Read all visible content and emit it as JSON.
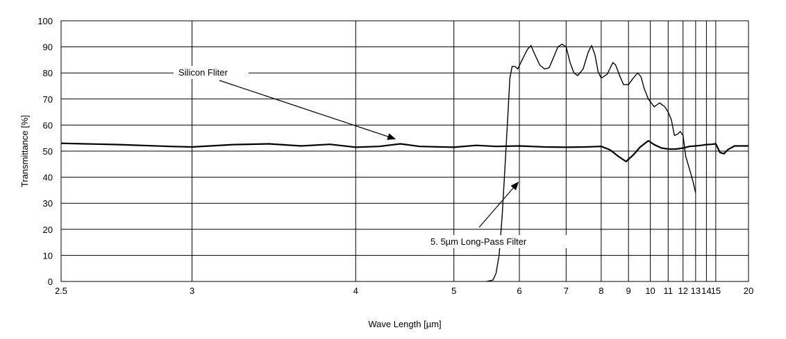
{
  "chart_data": {
    "type": "line",
    "xlabel": "Wave Length [µm]",
    "ylabel": "Transmittance [%]",
    "x_scale": "reciprocal",
    "xlim": [
      2.5,
      20
    ],
    "ylim": [
      0,
      100
    ],
    "x_ticks": [
      2.5,
      3,
      4,
      5,
      6,
      7,
      8,
      9,
      10,
      11,
      12,
      13,
      14,
      15,
      20
    ],
    "x_tick_labels": [
      "2.5",
      "3",
      "4",
      "5",
      "6",
      "7",
      "8",
      "9",
      "10",
      "11",
      "12",
      "13",
      "14",
      "15",
      "20"
    ],
    "y_ticks": [
      0,
      10,
      20,
      30,
      40,
      50,
      60,
      70,
      80,
      90,
      100
    ],
    "y_tick_labels": [
      "0",
      "10",
      "20",
      "30",
      "40",
      "50",
      "60",
      "70",
      "80",
      "90",
      "100"
    ],
    "grid": true,
    "legend": "none",
    "series": [
      {
        "name": "Silicon Fliter",
        "color": "#000000",
        "points": [
          [
            2.5,
            53
          ],
          [
            2.7,
            52.5
          ],
          [
            2.9,
            51.8
          ],
          [
            3.0,
            51.6
          ],
          [
            3.2,
            52.5
          ],
          [
            3.4,
            52.8
          ],
          [
            3.6,
            52
          ],
          [
            3.8,
            52.6
          ],
          [
            4.0,
            51.5
          ],
          [
            4.2,
            51.8
          ],
          [
            4.4,
            52.8
          ],
          [
            4.6,
            51.8
          ],
          [
            5.0,
            51.5
          ],
          [
            5.3,
            52.2
          ],
          [
            5.6,
            51.8
          ],
          [
            6.0,
            52
          ],
          [
            6.5,
            51.6
          ],
          [
            7.0,
            51.5
          ],
          [
            7.5,
            51.6
          ],
          [
            8.0,
            51.8
          ],
          [
            8.3,
            50.5
          ],
          [
            8.6,
            48
          ],
          [
            8.9,
            46
          ],
          [
            9.2,
            48.5
          ],
          [
            9.5,
            51.5
          ],
          [
            9.9,
            54
          ],
          [
            10.2,
            52.5
          ],
          [
            10.6,
            51.2
          ],
          [
            11.0,
            50.8
          ],
          [
            11.5,
            50.8
          ],
          [
            12.0,
            51.2
          ],
          [
            12.5,
            51.8
          ],
          [
            13.0,
            52
          ],
          [
            13.5,
            52.2
          ],
          [
            14.0,
            52.5
          ],
          [
            14.5,
            52.6
          ],
          [
            15.0,
            52.8
          ],
          [
            15.5,
            49.5
          ],
          [
            16.0,
            49
          ],
          [
            16.5,
            50.5
          ],
          [
            17.5,
            52
          ],
          [
            20.0,
            52
          ]
        ]
      },
      {
        "name": "5. 5µm Long-Pass Filter",
        "color": "#000000",
        "points": [
          [
            5.45,
            0
          ],
          [
            5.55,
            0.5
          ],
          [
            5.6,
            3
          ],
          [
            5.65,
            10
          ],
          [
            5.7,
            25
          ],
          [
            5.75,
            45
          ],
          [
            5.8,
            65
          ],
          [
            5.83,
            78
          ],
          [
            5.87,
            82.5
          ],
          [
            5.92,
            82.5
          ],
          [
            5.97,
            81.5
          ],
          [
            6.05,
            85
          ],
          [
            6.15,
            89
          ],
          [
            6.22,
            90.5
          ],
          [
            6.3,
            87
          ],
          [
            6.4,
            83
          ],
          [
            6.5,
            81.5
          ],
          [
            6.6,
            82
          ],
          [
            6.7,
            86
          ],
          [
            6.8,
            90
          ],
          [
            6.9,
            91
          ],
          [
            7.0,
            90
          ],
          [
            7.1,
            84
          ],
          [
            7.2,
            80
          ],
          [
            7.3,
            79
          ],
          [
            7.45,
            81.5
          ],
          [
            7.6,
            88
          ],
          [
            7.7,
            90.5
          ],
          [
            7.8,
            87
          ],
          [
            7.9,
            80.5
          ],
          [
            8.0,
            78
          ],
          [
            8.2,
            79.5
          ],
          [
            8.4,
            84
          ],
          [
            8.5,
            83
          ],
          [
            8.65,
            79
          ],
          [
            8.8,
            75.5
          ],
          [
            9.0,
            75.5
          ],
          [
            9.2,
            78
          ],
          [
            9.4,
            80
          ],
          [
            9.55,
            78.5
          ],
          [
            9.7,
            74
          ],
          [
            9.9,
            70
          ],
          [
            10.2,
            67
          ],
          [
            10.5,
            68.5
          ],
          [
            10.8,
            67
          ],
          [
            11.0,
            65
          ],
          [
            11.2,
            62
          ],
          [
            11.4,
            56
          ],
          [
            11.6,
            56.5
          ],
          [
            11.8,
            57.5
          ],
          [
            12.0,
            56
          ],
          [
            12.2,
            48
          ],
          [
            12.5,
            43
          ],
          [
            12.8,
            38
          ],
          [
            13.0,
            34
          ]
        ]
      }
    ],
    "annotations": [
      {
        "text": "Silicon Fliter",
        "target_series": "Silicon Fliter",
        "target": [
          4.35,
          52
        ]
      },
      {
        "text": "5. 5µm Long-Pass Filter",
        "target_series": "5. 5µm Long-Pass Filter",
        "target": [
          5.88,
          37
        ]
      }
    ]
  }
}
